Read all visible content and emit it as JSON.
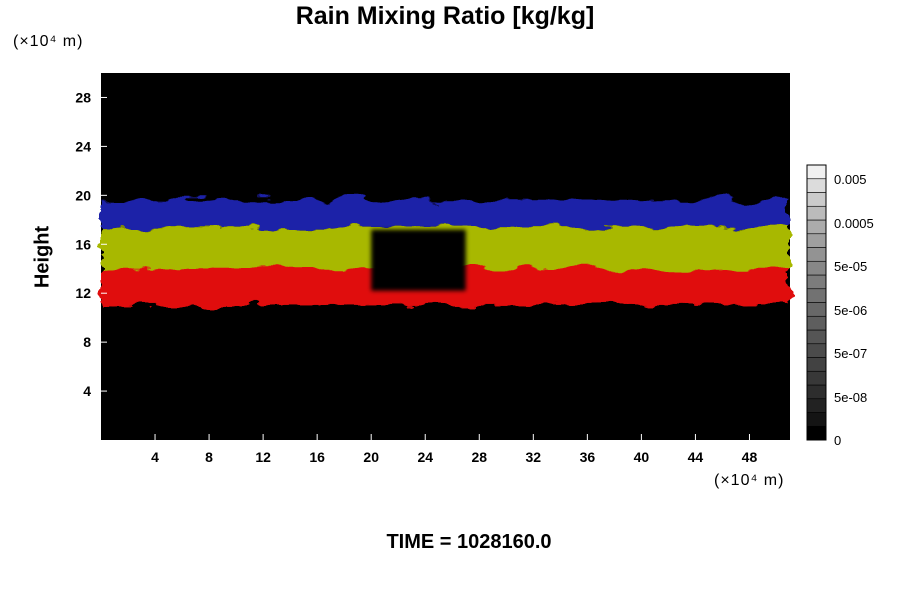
{
  "chart_data": {
    "type": "heatmap",
    "title": "Rain Mixing Ratio [kg/kg]",
    "xlabel": "",
    "ylabel": "Height",
    "x_unit": "(×10⁴ m)",
    "y_unit": "(×10⁴ m)",
    "xlim": [
      0,
      51
    ],
    "ylim": [
      0,
      30
    ],
    "x_ticks": [
      4,
      8,
      12,
      16,
      20,
      24,
      28,
      32,
      36,
      40,
      44,
      48
    ],
    "y_ticks": [
      4,
      8,
      12,
      16,
      20,
      24,
      28
    ],
    "background_color": "#000000",
    "colorbar": {
      "labels": [
        "0.005",
        "0.0005",
        "5e-05",
        "5e-06",
        "5e-07",
        "5e-08",
        "0"
      ],
      "colors": [
        "#000000",
        "#141414",
        "#222222",
        "#2d2d2d",
        "#383838",
        "#424242",
        "#4b4b4b",
        "#555555",
        "#5e5e5e",
        "#686868",
        "#727272",
        "#7c7c7c",
        "#878787",
        "#939393",
        "#9f9f9f",
        "#acacac",
        "#bbbbbb",
        "#cbcbcb",
        "#dcdcdc",
        "#f0f0f0"
      ]
    },
    "layers": [
      {
        "color": "#1e22a8",
        "bottom": 17.4,
        "top": 19.6,
        "description": "upper band"
      },
      {
        "color": "#a8b800",
        "bottom": 13.8,
        "top": 17.4,
        "description": "middle band"
      },
      {
        "color": "#e01010",
        "bottom": 11.0,
        "top": 14.0,
        "description": "lower band"
      }
    ],
    "gap_x": [
      20,
      27
    ]
  },
  "footer": {
    "time_text": "TIME = 1028160.0"
  }
}
